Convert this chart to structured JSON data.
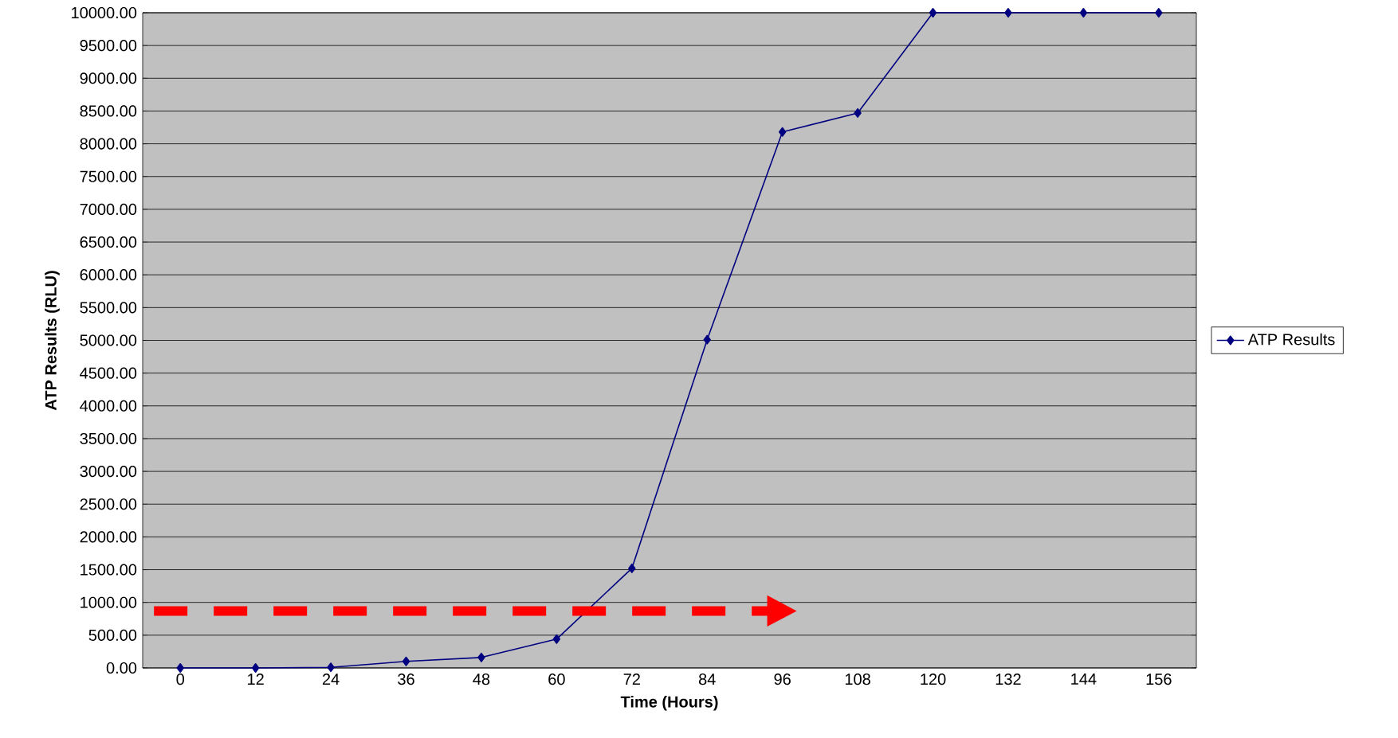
{
  "chart_data": {
    "type": "line",
    "xlabel": "Time (Hours)",
    "ylabel": "ATP Results (RLU)",
    "categories": [
      "0",
      "12",
      "24",
      "36",
      "48",
      "60",
      "72",
      "84",
      "96",
      "108",
      "120",
      "132",
      "144",
      "156"
    ],
    "series": [
      {
        "name": "ATP Results",
        "color": "#000080",
        "values": [
          0,
          0,
          10,
          100,
          160,
          440,
          1520,
          5010,
          8180,
          8470,
          10000,
          10000,
          10000,
          10000
        ]
      }
    ],
    "ylim": [
      0,
      10000
    ],
    "yticks": [
      {
        "value": 0,
        "label": "0.00"
      },
      {
        "value": 500,
        "label": "500.00"
      },
      {
        "value": 1000,
        "label": "1000.00"
      },
      {
        "value": 1500,
        "label": "1500.00"
      },
      {
        "value": 2000,
        "label": "2000.00"
      },
      {
        "value": 2500,
        "label": "2500.00"
      },
      {
        "value": 3000,
        "label": "3000.00"
      },
      {
        "value": 3500,
        "label": "3500.00"
      },
      {
        "value": 4000,
        "label": "4000.00"
      },
      {
        "value": 4500,
        "label": "4500.00"
      },
      {
        "value": 5000,
        "label": "5000.00"
      },
      {
        "value": 5500,
        "label": "5500.00"
      },
      {
        "value": 6000,
        "label": "6000.00"
      },
      {
        "value": 6500,
        "label": "6500.00"
      },
      {
        "value": 7000,
        "label": "7000.00"
      },
      {
        "value": 7500,
        "label": "7500.00"
      },
      {
        "value": 8000,
        "label": "8000.00"
      },
      {
        "value": 8500,
        "label": "8500.00"
      },
      {
        "value": 9000,
        "label": "9000.00"
      },
      {
        "value": 9500,
        "label": "9500.00"
      },
      {
        "value": 10000,
        "label": "10000.00"
      }
    ],
    "ref_lines": [
      {
        "axis": "y",
        "value": 870,
        "color": "#ff0000",
        "line_style": "dashed"
      }
    ],
    "grid": "y",
    "legend": "right",
    "marker": "diamond",
    "line_style": "solid"
  }
}
